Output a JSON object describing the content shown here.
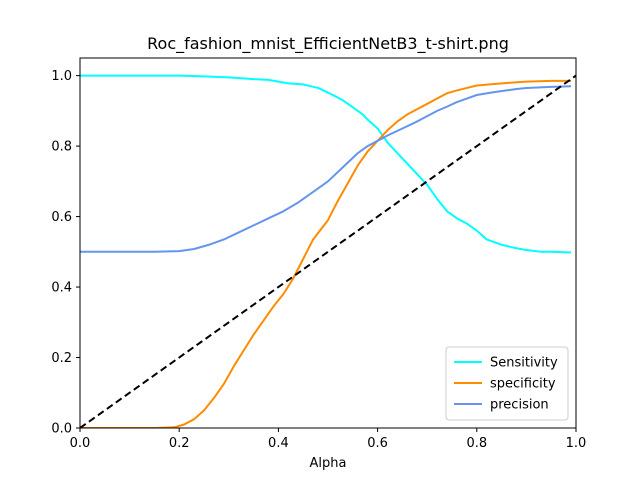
{
  "chart_data": {
    "type": "line",
    "title": "Roc_fashion_mnist_EfficientNetB3_t-shirt.png",
    "xlabel": "Alpha",
    "ylabel": "",
    "xlim": [
      0,
      1
    ],
    "ylim": [
      0,
      1.05
    ],
    "xticks": [
      "0.0",
      "0.2",
      "0.4",
      "0.6",
      "0.8",
      "1.0"
    ],
    "yticks": [
      "0.0",
      "0.2",
      "0.4",
      "0.6",
      "0.8",
      "1.0"
    ],
    "grid": false,
    "legend_position": "lower-right",
    "series": [
      {
        "name": "Sensitivity",
        "color": "#00ffff",
        "x": [
          0.0,
          0.05,
          0.1,
          0.15,
          0.2,
          0.25,
          0.3,
          0.35,
          0.38,
          0.42,
          0.45,
          0.48,
          0.5,
          0.53,
          0.55,
          0.57,
          0.58,
          0.6,
          0.62,
          0.64,
          0.66,
          0.68,
          0.7,
          0.72,
          0.74,
          0.76,
          0.78,
          0.8,
          0.82,
          0.85,
          0.88,
          0.9,
          0.93,
          0.95,
          0.99
        ],
        "y": [
          1.0,
          1.0,
          1.0,
          1.0,
          1.0,
          0.998,
          0.995,
          0.99,
          0.988,
          0.978,
          0.975,
          0.965,
          0.952,
          0.93,
          0.91,
          0.89,
          0.875,
          0.85,
          0.81,
          0.78,
          0.75,
          0.72,
          0.69,
          0.65,
          0.615,
          0.595,
          0.58,
          0.56,
          0.535,
          0.52,
          0.51,
          0.505,
          0.5,
          0.5,
          0.498
        ]
      },
      {
        "name": "specificity",
        "color": "#ff8c00",
        "x": [
          0.0,
          0.05,
          0.1,
          0.15,
          0.19,
          0.21,
          0.23,
          0.25,
          0.27,
          0.29,
          0.31,
          0.33,
          0.35,
          0.37,
          0.39,
          0.41,
          0.43,
          0.45,
          0.47,
          0.5,
          0.52,
          0.54,
          0.56,
          0.58,
          0.6,
          0.62,
          0.64,
          0.66,
          0.68,
          0.7,
          0.72,
          0.74,
          0.76,
          0.78,
          0.8,
          0.85,
          0.9,
          0.95,
          0.99
        ],
        "y": [
          0.0,
          0.0,
          0.0,
          0.0,
          0.002,
          0.01,
          0.025,
          0.05,
          0.085,
          0.125,
          0.175,
          0.22,
          0.265,
          0.305,
          0.345,
          0.38,
          0.425,
          0.48,
          0.535,
          0.59,
          0.645,
          0.695,
          0.745,
          0.785,
          0.815,
          0.845,
          0.87,
          0.89,
          0.905,
          0.92,
          0.935,
          0.95,
          0.958,
          0.965,
          0.972,
          0.978,
          0.983,
          0.985,
          0.985
        ]
      },
      {
        "name": "precision",
        "color": "#6495ed",
        "x": [
          0.0,
          0.05,
          0.1,
          0.15,
          0.2,
          0.23,
          0.26,
          0.29,
          0.32,
          0.35,
          0.38,
          0.41,
          0.44,
          0.47,
          0.5,
          0.53,
          0.56,
          0.58,
          0.6,
          0.62,
          0.65,
          0.68,
          0.7,
          0.72,
          0.74,
          0.76,
          0.78,
          0.8,
          0.83,
          0.86,
          0.88,
          0.9,
          0.95,
          0.99
        ],
        "y": [
          0.5,
          0.5,
          0.5,
          0.5,
          0.502,
          0.508,
          0.52,
          0.535,
          0.555,
          0.575,
          0.595,
          0.615,
          0.64,
          0.67,
          0.7,
          0.74,
          0.78,
          0.8,
          0.815,
          0.83,
          0.85,
          0.87,
          0.885,
          0.9,
          0.912,
          0.925,
          0.935,
          0.945,
          0.952,
          0.958,
          0.962,
          0.965,
          0.968,
          0.97
        ]
      },
      {
        "name": "",
        "color": "#000000",
        "dashed": true,
        "x": [
          0.0,
          1.0
        ],
        "y": [
          0.0,
          1.0
        ]
      }
    ]
  }
}
